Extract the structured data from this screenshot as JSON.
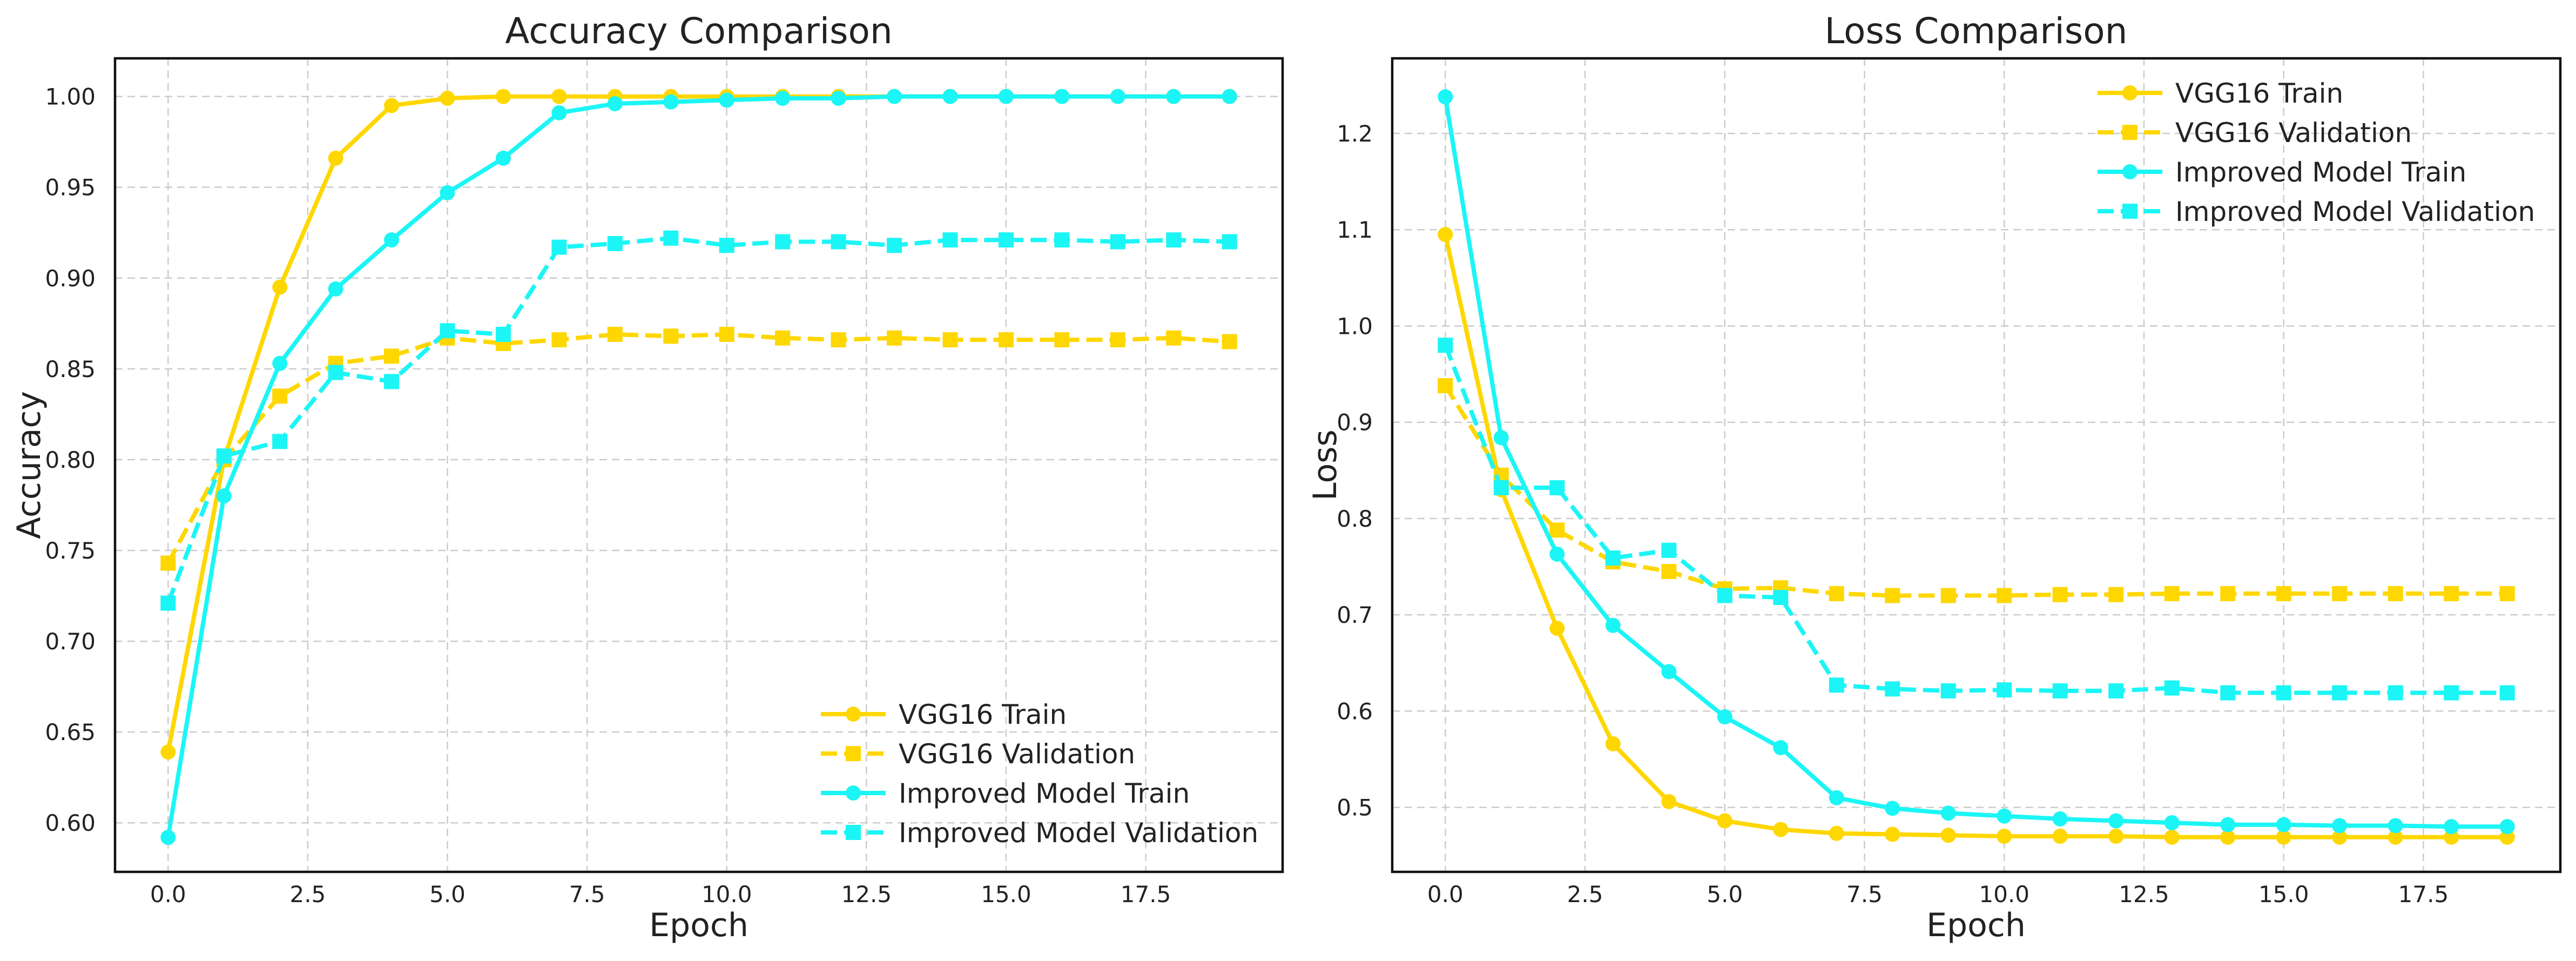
{
  "chart_data": [
    {
      "type": "line",
      "title": "Accuracy Comparison",
      "xlabel": "Epoch",
      "ylabel": "Accuracy",
      "xlim": [
        -0.95,
        19.95
      ],
      "ylim": [
        0.573,
        1.021
      ],
      "xticks": [
        0,
        2.5,
        5,
        7.5,
        10,
        12.5,
        15,
        17.5
      ],
      "xtick_labels": [
        "0.0",
        "2.5",
        "5.0",
        "7.5",
        "10.0",
        "12.5",
        "15.0",
        "17.5"
      ],
      "yticks": [
        0.6,
        0.65,
        0.7,
        0.75,
        0.8,
        0.85,
        0.9,
        0.95,
        1.0
      ],
      "ytick_labels": [
        "0.60",
        "0.65",
        "0.70",
        "0.75",
        "0.80",
        "0.85",
        "0.90",
        "0.95",
        "1.00"
      ],
      "grid": true,
      "legend_position": "bottom-right",
      "x": [
        0,
        1,
        2,
        3,
        4,
        5,
        6,
        7,
        8,
        9,
        10,
        11,
        12,
        13,
        14,
        15,
        16,
        17,
        18,
        19
      ],
      "series": [
        {
          "name": "VGG16 Train",
          "color": "#FFD700",
          "style": "solid",
          "marker": "circle",
          "values": [
            0.639,
            0.8,
            0.895,
            0.966,
            0.995,
            0.999,
            1.0,
            1.0,
            1.0,
            1.0,
            1.0,
            1.0,
            1.0,
            1.0,
            1.0,
            1.0,
            1.0,
            1.0,
            1.0,
            1.0
          ]
        },
        {
          "name": "VGG16 Validation",
          "color": "#FFD700",
          "style": "dashed",
          "marker": "square",
          "values": [
            0.743,
            0.8,
            0.835,
            0.853,
            0.857,
            0.867,
            0.864,
            0.866,
            0.869,
            0.868,
            0.869,
            0.867,
            0.866,
            0.867,
            0.866,
            0.866,
            0.866,
            0.866,
            0.867,
            0.865
          ]
        },
        {
          "name": "Improved Model Train",
          "color": "#1CF5F5",
          "style": "solid",
          "marker": "circle",
          "values": [
            0.592,
            0.78,
            0.853,
            0.894,
            0.921,
            0.947,
            0.966,
            0.991,
            0.996,
            0.997,
            0.998,
            0.999,
            0.999,
            1.0,
            1.0,
            1.0,
            1.0,
            1.0,
            1.0,
            1.0
          ]
        },
        {
          "name": "Improved Model Validation",
          "color": "#1CF5F5",
          "style": "dashed",
          "marker": "square",
          "values": [
            0.721,
            0.802,
            0.81,
            0.848,
            0.843,
            0.871,
            0.869,
            0.917,
            0.919,
            0.922,
            0.918,
            0.92,
            0.92,
            0.918,
            0.921,
            0.921,
            0.921,
            0.92,
            0.921,
            0.92
          ]
        }
      ]
    },
    {
      "type": "line",
      "title": "Loss Comparison",
      "xlabel": "Epoch",
      "ylabel": "Loss",
      "xlim": [
        -0.95,
        19.95
      ],
      "ylim": [
        0.433,
        1.278
      ],
      "xticks": [
        0,
        2.5,
        5,
        7.5,
        10,
        12.5,
        15,
        17.5
      ],
      "xtick_labels": [
        "0.0",
        "2.5",
        "5.0",
        "7.5",
        "10.0",
        "12.5",
        "15.0",
        "17.5"
      ],
      "yticks": [
        0.5,
        0.6,
        0.7,
        0.8,
        0.9,
        1.0,
        1.1,
        1.2
      ],
      "ytick_labels": [
        "0.5",
        "0.6",
        "0.7",
        "0.8",
        "0.9",
        "1.0",
        "1.1",
        "1.2"
      ],
      "grid": true,
      "legend_position": "top-right",
      "x": [
        0,
        1,
        2,
        3,
        4,
        5,
        6,
        7,
        8,
        9,
        10,
        11,
        12,
        13,
        14,
        15,
        16,
        17,
        18,
        19
      ],
      "series": [
        {
          "name": "VGG16 Train",
          "color": "#FFD700",
          "style": "solid",
          "marker": "circle",
          "values": [
            1.095,
            0.83,
            0.686,
            0.566,
            0.506,
            0.486,
            0.477,
            0.473,
            0.472,
            0.471,
            0.47,
            0.47,
            0.47,
            0.469,
            0.469,
            0.469,
            0.469,
            0.469,
            0.469,
            0.469
          ]
        },
        {
          "name": "VGG16 Validation",
          "color": "#FFD700",
          "style": "dashed",
          "marker": "square",
          "values": [
            0.938,
            0.845,
            0.788,
            0.755,
            0.745,
            0.727,
            0.728,
            0.722,
            0.72,
            0.72,
            0.72,
            0.721,
            0.721,
            0.722,
            0.722,
            0.722,
            0.722,
            0.722,
            0.722,
            0.722
          ]
        },
        {
          "name": "Improved Model Train",
          "color": "#1CF5F5",
          "style": "solid",
          "marker": "circle",
          "values": [
            1.238,
            0.884,
            0.763,
            0.689,
            0.641,
            0.594,
            0.562,
            0.51,
            0.499,
            0.494,
            0.491,
            0.488,
            0.486,
            0.484,
            0.482,
            0.482,
            0.481,
            0.481,
            0.48,
            0.48
          ]
        },
        {
          "name": "Improved Model Validation",
          "color": "#1CF5F5",
          "style": "dashed",
          "marker": "square",
          "values": [
            0.98,
            0.832,
            0.832,
            0.759,
            0.767,
            0.72,
            0.718,
            0.627,
            0.623,
            0.621,
            0.622,
            0.621,
            0.621,
            0.624,
            0.619,
            0.619,
            0.619,
            0.619,
            0.619,
            0.619
          ]
        }
      ]
    }
  ]
}
